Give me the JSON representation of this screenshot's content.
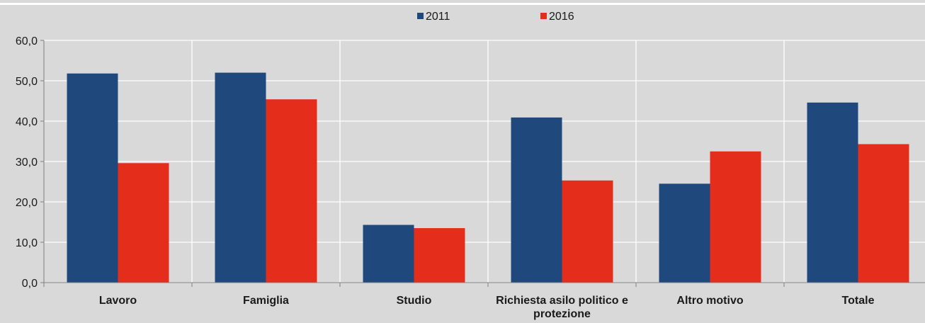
{
  "chart_data": {
    "type": "bar",
    "categories": [
      "Lavoro",
      "Famiglia",
      "Studio",
      "Richiesta asilo politico e protezione",
      "Altro motivo",
      "Totale"
    ],
    "series": [
      {
        "name": "2011",
        "color": "#1f497d",
        "values": [
          51.8,
          52.0,
          14.3,
          40.9,
          24.5,
          44.6
        ]
      },
      {
        "name": "2016",
        "color": "#e52d1b",
        "values": [
          29.6,
          45.4,
          13.5,
          25.3,
          32.5,
          34.3
        ]
      }
    ],
    "y_ticks": [
      "0,0",
      "10,0",
      "20,0",
      "30,0",
      "40,0",
      "50,0",
      "60,0"
    ],
    "ylim": [
      0,
      60
    ],
    "grid": true,
    "legend_position": "top-center",
    "title": "",
    "xlabel": "",
    "ylabel": ""
  }
}
